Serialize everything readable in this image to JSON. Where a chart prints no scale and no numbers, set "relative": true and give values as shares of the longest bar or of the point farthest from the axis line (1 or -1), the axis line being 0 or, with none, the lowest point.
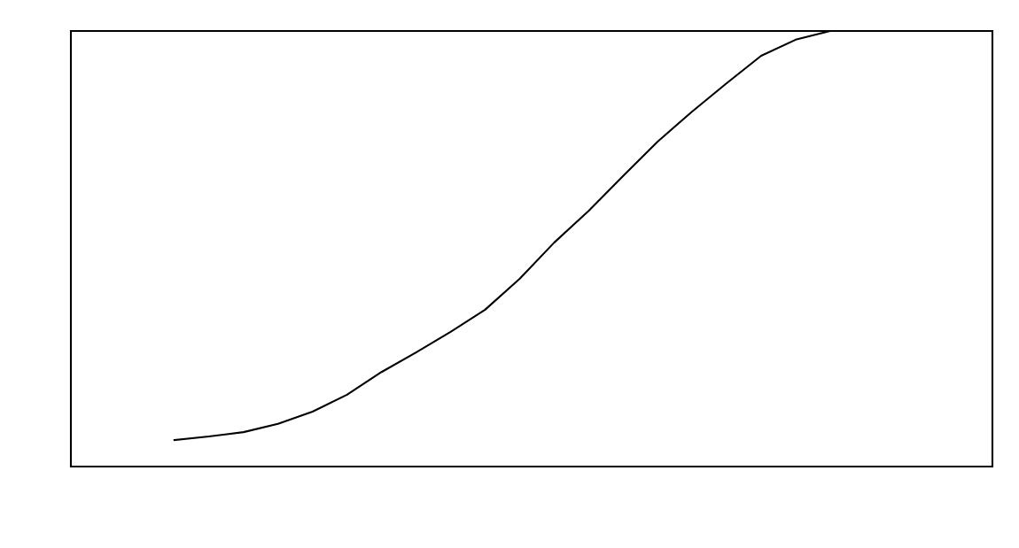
{
  "chart_data": {
    "type": "line",
    "relative": true,
    "categories": [
      null,
      null,
      null,
      null,
      null,
      null,
      null,
      null,
      null,
      null,
      null,
      null,
      null,
      null,
      null,
      null,
      null,
      null,
      null,
      null
    ],
    "series": [
      {
        "color": "#000000",
        "values": [
          0.061,
          0.069,
          0.079,
          0.098,
          0.126,
          0.165,
          0.217,
          0.262,
          0.309,
          0.36,
          0.431,
          0.514,
          0.587,
          0.667,
          0.746,
          0.815,
          0.88,
          0.943,
          0.98,
          1.0
        ]
      }
    ],
    "marker": "none",
    "line_style": "solid",
    "grid": false,
    "legend": false
  }
}
